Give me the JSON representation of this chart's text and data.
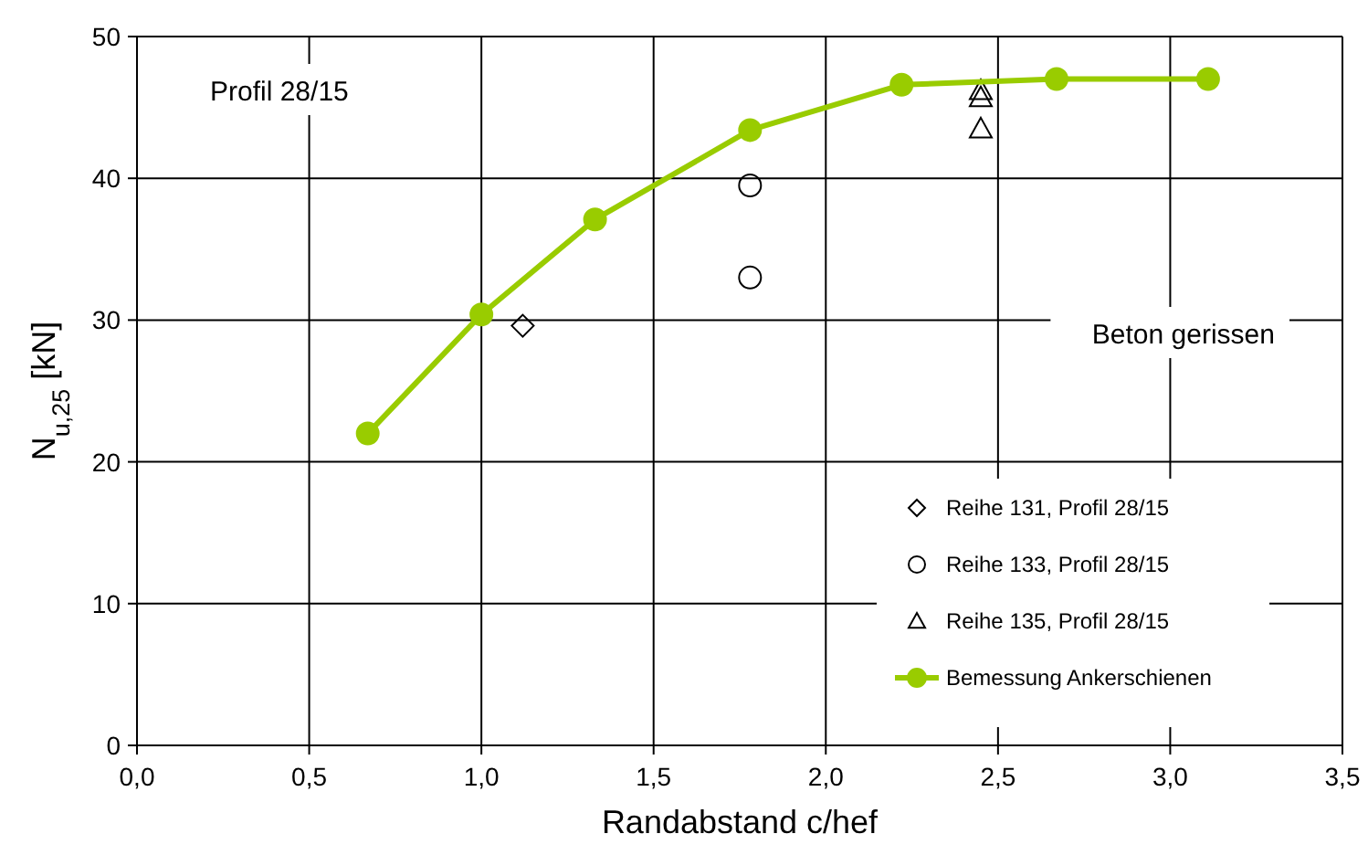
{
  "chart_data": {
    "type": "scatter",
    "xlabel": "Randabstand c/hef",
    "ylabel": "N$_{u,25}$ [kN]",
    "xlim": [
      0,
      3.5
    ],
    "ylim": [
      0,
      50
    ],
    "xticks": [
      {
        "value": 0,
        "label": "0,0"
      },
      {
        "value": 0.5,
        "label": "0,5"
      },
      {
        "value": 1,
        "label": "1,0"
      },
      {
        "value": 1.5,
        "label": "1,5"
      },
      {
        "value": 2,
        "label": "2,0"
      },
      {
        "value": 2.5,
        "label": "2,5"
      },
      {
        "value": 3,
        "label": "3,0"
      },
      {
        "value": 3.5,
        "label": "3,5"
      }
    ],
    "yticks": [
      0,
      10,
      20,
      30,
      40,
      50
    ],
    "grid": true,
    "legend": "bottom right",
    "annotations": [
      "Profil 28/15",
      "Beton gerissen"
    ],
    "series": [
      {
        "name": "Reihe 131, Profil 28/15",
        "marker": "diamond",
        "color": "#000000",
        "x": [
          1.12
        ],
        "values": [
          29.6
        ]
      },
      {
        "name": "Reihe 133, Profil 28/15",
        "marker": "circle",
        "color": "#000000",
        "x": [
          1.78,
          1.78
        ],
        "values": [
          39.5,
          33.0
        ]
      },
      {
        "name": "Reihe 135, Profil 28/15",
        "marker": "triangle",
        "color": "#000000",
        "x": [
          2.45,
          2.45,
          2.45
        ],
        "values": [
          46.2,
          45.7,
          43.5
        ]
      },
      {
        "name": "Bemessung Ankerschienen",
        "type": "line",
        "marker": "circle",
        "color": "#99cc00",
        "x": [
          0.67,
          1.0,
          1.33,
          1.78,
          2.22,
          2.67,
          3.11
        ],
        "values": [
          22.0,
          30.4,
          37.1,
          43.4,
          46.6,
          47.0,
          47.0
        ]
      }
    ]
  }
}
